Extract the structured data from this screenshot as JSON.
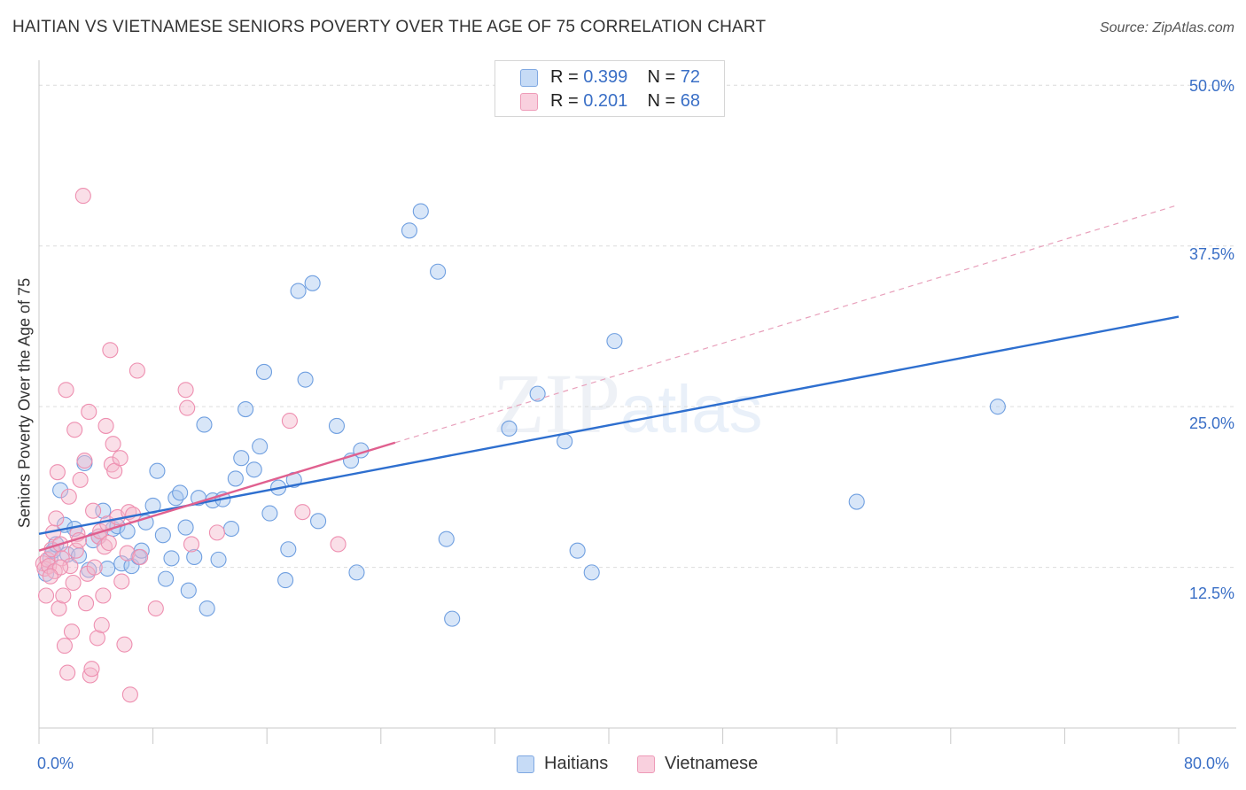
{
  "title": "HAITIAN VS VIETNAMESE SENIORS POVERTY OVER THE AGE OF 75 CORRELATION CHART",
  "source": "Source: ZipAtlas.com",
  "watermark": {
    "zip": "ZIP",
    "atlas": "atlas"
  },
  "legend": {
    "rows": [
      {
        "r_label": "R =",
        "r_value": "0.399",
        "n_label": "N =",
        "n_value": "72",
        "color": "#a9c7ef"
      },
      {
        "r_label": "R =",
        "r_value": "0.201",
        "n_label": "N =",
        "n_value": "68",
        "color": "#f5b8cc"
      }
    ]
  },
  "bottom_legend": [
    {
      "label": "Haitians",
      "color": "#a9c7ef"
    },
    {
      "label": "Vietnamese",
      "color": "#f5b8cc"
    }
  ],
  "chart_data": {
    "type": "scatter",
    "ylabel": "Seniors Poverty Over the Age of 75",
    "x_tick_labels": [
      "0.0%",
      "80.0%"
    ],
    "y_tick_labels": [
      "12.5%",
      "25.0%",
      "37.5%",
      "50.0%"
    ],
    "xlim": [
      0,
      80
    ],
    "ylim": [
      0,
      52.5
    ],
    "y_ticks": [
      12.5,
      25,
      37.5,
      50
    ],
    "grid": true,
    "series": [
      {
        "name": "Haitians",
        "color": "#6f9fe0",
        "fill": "#a9c7ef",
        "trend": {
          "x1": 0,
          "y1": 15.1,
          "x2": 80,
          "y2": 32.0,
          "color": "#2e6fcf"
        },
        "points": [
          [
            0.5,
            12.0
          ],
          [
            0.8,
            13.2
          ],
          [
            1.0,
            13.8
          ],
          [
            1.2,
            14.3
          ],
          [
            1.5,
            18.5
          ],
          [
            1.8,
            15.8
          ],
          [
            2.0,
            13.5
          ],
          [
            2.5,
            15.5
          ],
          [
            2.8,
            13.4
          ],
          [
            3.2,
            20.6
          ],
          [
            3.5,
            12.3
          ],
          [
            3.8,
            14.6
          ],
          [
            4.2,
            14.9
          ],
          [
            4.5,
            16.9
          ],
          [
            4.8,
            12.4
          ],
          [
            5.2,
            15.5
          ],
          [
            5.5,
            15.7
          ],
          [
            5.8,
            12.8
          ],
          [
            6.2,
            15.3
          ],
          [
            6.5,
            12.6
          ],
          [
            7.0,
            13.3
          ],
          [
            7.2,
            13.8
          ],
          [
            7.5,
            16.0
          ],
          [
            8.0,
            17.3
          ],
          [
            8.3,
            20.0
          ],
          [
            8.7,
            15.0
          ],
          [
            8.9,
            11.6
          ],
          [
            9.3,
            13.2
          ],
          [
            9.6,
            17.9
          ],
          [
            9.9,
            18.3
          ],
          [
            10.3,
            15.6
          ],
          [
            10.5,
            10.7
          ],
          [
            10.9,
            13.3
          ],
          [
            11.2,
            17.9
          ],
          [
            11.6,
            23.6
          ],
          [
            11.8,
            9.3
          ],
          [
            12.2,
            17.7
          ],
          [
            12.6,
            13.1
          ],
          [
            12.9,
            17.8
          ],
          [
            13.5,
            15.5
          ],
          [
            13.8,
            19.4
          ],
          [
            14.2,
            21.0
          ],
          [
            14.5,
            24.8
          ],
          [
            15.1,
            20.1
          ],
          [
            15.5,
            21.9
          ],
          [
            15.8,
            27.7
          ],
          [
            16.2,
            16.7
          ],
          [
            16.8,
            18.7
          ],
          [
            17.3,
            11.5
          ],
          [
            17.5,
            13.9
          ],
          [
            17.9,
            19.3
          ],
          [
            18.2,
            34.0
          ],
          [
            18.7,
            27.1
          ],
          [
            19.2,
            34.6
          ],
          [
            19.6,
            16.1
          ],
          [
            20.9,
            23.5
          ],
          [
            21.9,
            20.8
          ],
          [
            22.3,
            12.1
          ],
          [
            22.6,
            21.6
          ],
          [
            26.0,
            38.7
          ],
          [
            26.8,
            40.2
          ],
          [
            28.0,
            35.5
          ],
          [
            28.6,
            14.7
          ],
          [
            29.0,
            8.5
          ],
          [
            33.0,
            23.3
          ],
          [
            35.0,
            26.0
          ],
          [
            36.9,
            22.3
          ],
          [
            37.8,
            13.8
          ],
          [
            38.8,
            12.1
          ],
          [
            40.4,
            30.1
          ],
          [
            57.4,
            17.6
          ],
          [
            67.3,
            25.0
          ]
        ]
      },
      {
        "name": "Vietnamese",
        "color": "#ee8fb0",
        "fill": "#f5b8cc",
        "trend": {
          "x1": 0,
          "y1": 13.8,
          "x2": 25,
          "y2": 22.2,
          "color": "#e0608f"
        },
        "trend_ext": {
          "x1": 25,
          "y1": 22.2,
          "x2": 80,
          "y2": 40.7,
          "color": "#e8a0bb"
        },
        "points": [
          [
            0.3,
            12.8
          ],
          [
            0.4,
            12.4
          ],
          [
            0.5,
            10.3
          ],
          [
            0.6,
            13.1
          ],
          [
            0.7,
            12.6
          ],
          [
            0.9,
            13.9
          ],
          [
            1.0,
            15.2
          ],
          [
            1.1,
            12.2
          ],
          [
            1.2,
            16.3
          ],
          [
            1.3,
            19.9
          ],
          [
            1.4,
            9.3
          ],
          [
            1.5,
            14.3
          ],
          [
            1.6,
            13.2
          ],
          [
            1.7,
            10.3
          ],
          [
            1.8,
            6.4
          ],
          [
            1.9,
            26.3
          ],
          [
            2.0,
            4.3
          ],
          [
            2.1,
            18.0
          ],
          [
            2.2,
            12.6
          ],
          [
            2.3,
            7.5
          ],
          [
            2.4,
            11.3
          ],
          [
            2.5,
            23.2
          ],
          [
            2.6,
            13.8
          ],
          [
            2.7,
            15.1
          ],
          [
            2.8,
            14.6
          ],
          [
            2.9,
            19.3
          ],
          [
            3.1,
            41.4
          ],
          [
            3.2,
            20.8
          ],
          [
            3.3,
            9.7
          ],
          [
            3.4,
            12.0
          ],
          [
            3.5,
            24.6
          ],
          [
            3.6,
            4.1
          ],
          [
            3.7,
            4.6
          ],
          [
            3.8,
            16.9
          ],
          [
            3.9,
            12.5
          ],
          [
            4.1,
            7.0
          ],
          [
            4.2,
            14.9
          ],
          [
            4.3,
            15.3
          ],
          [
            4.4,
            8.0
          ],
          [
            4.5,
            10.3
          ],
          [
            4.6,
            14.1
          ],
          [
            4.7,
            23.5
          ],
          [
            4.8,
            15.9
          ],
          [
            4.9,
            14.4
          ],
          [
            5.0,
            29.4
          ],
          [
            5.1,
            20.5
          ],
          [
            5.2,
            22.1
          ],
          [
            5.3,
            20.0
          ],
          [
            5.5,
            16.4
          ],
          [
            5.7,
            21.0
          ],
          [
            5.8,
            11.4
          ],
          [
            6.0,
            6.5
          ],
          [
            6.2,
            13.6
          ],
          [
            6.3,
            16.8
          ],
          [
            6.4,
            2.6
          ],
          [
            6.6,
            16.6
          ],
          [
            6.9,
            27.8
          ],
          [
            7.1,
            13.3
          ],
          [
            8.2,
            9.3
          ],
          [
            10.3,
            26.3
          ],
          [
            10.4,
            24.9
          ],
          [
            10.7,
            14.3
          ],
          [
            12.5,
            15.2
          ],
          [
            17.6,
            23.9
          ],
          [
            18.5,
            16.8
          ],
          [
            21.0,
            14.3
          ],
          [
            1.5,
            12.5
          ],
          [
            0.8,
            11.8
          ]
        ]
      }
    ]
  }
}
